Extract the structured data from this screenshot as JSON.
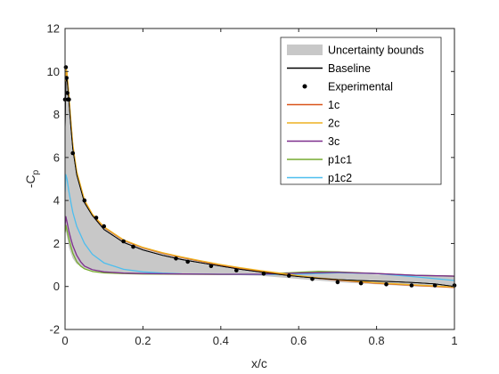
{
  "chart_data": {
    "type": "line",
    "xlabel": "x/c",
    "ylabel": "-C",
    "ylabel_sub": "p",
    "xlim": [
      0,
      1
    ],
    "ylim": [
      -2,
      12
    ],
    "xticks": [
      "0",
      "0.2",
      "0.4",
      "0.6",
      "0.8",
      "1"
    ],
    "xtick_values": [
      0,
      0.2,
      0.4,
      0.6,
      0.8,
      1
    ],
    "yticks": [
      "-2",
      "0",
      "2",
      "4",
      "6",
      "8",
      "10",
      "12"
    ],
    "ytick_values": [
      -2,
      0,
      2,
      4,
      6,
      8,
      10,
      12
    ],
    "grid": false,
    "legend_position": "top-right",
    "uncertainty": {
      "name": "Uncertainty bounds",
      "color": "#c8c8c8",
      "upper": {
        "x": [
          0,
          0.002,
          0.005,
          0.01,
          0.02,
          0.03,
          0.05,
          0.07,
          0.1,
          0.15,
          0.2,
          0.25,
          0.3,
          0.4,
          0.5,
          0.6,
          0.7,
          0.8,
          0.9,
          1.0
        ],
        "y": [
          9.0,
          10.1,
          9.6,
          8.3,
          6.4,
          5.2,
          3.95,
          3.3,
          2.75,
          2.15,
          1.8,
          1.55,
          1.35,
          1.0,
          0.75,
          0.55,
          0.62,
          0.55,
          0.5,
          0.5
        ]
      },
      "lower": {
        "x": [
          0,
          0.002,
          0.005,
          0.01,
          0.02,
          0.03,
          0.05,
          0.07,
          0.1,
          0.15,
          0.2,
          0.25,
          0.3,
          0.4,
          0.5,
          0.6,
          0.7,
          0.8,
          0.9,
          1.0
        ],
        "y": [
          2.9,
          2.6,
          2.3,
          1.8,
          1.3,
          1.05,
          0.85,
          0.75,
          0.68,
          0.62,
          0.6,
          0.58,
          0.57,
          0.55,
          0.5,
          0.35,
          0.2,
          0.1,
          0.0,
          -0.05
        ]
      }
    },
    "series": [
      {
        "name": "Baseline",
        "color": "#000000",
        "width": 0.9,
        "x": [
          0,
          0.002,
          0.005,
          0.01,
          0.015,
          0.02,
          0.03,
          0.05,
          0.07,
          0.1,
          0.15,
          0.2,
          0.25,
          0.3,
          0.35,
          0.4,
          0.45,
          0.5,
          0.55,
          0.6,
          0.65,
          0.7,
          0.75,
          0.8,
          0.85,
          0.9,
          0.95,
          1.0
        ],
        "y": [
          7.3,
          9.5,
          9.7,
          8.6,
          7.4,
          6.4,
          5.2,
          3.9,
          3.3,
          2.65,
          2.05,
          1.7,
          1.45,
          1.25,
          1.1,
          0.95,
          0.8,
          0.68,
          0.56,
          0.46,
          0.38,
          0.32,
          0.28,
          0.25,
          0.22,
          0.18,
          0.12,
          0.0
        ]
      },
      {
        "name": "1c",
        "color": "#d95319",
        "width": 1.3,
        "x": [
          0,
          0.002,
          0.005,
          0.01,
          0.015,
          0.02,
          0.03,
          0.05,
          0.07,
          0.1,
          0.15,
          0.2,
          0.25,
          0.3,
          0.35,
          0.4,
          0.45,
          0.5,
          0.55,
          0.6,
          0.65,
          0.7,
          0.75,
          0.8,
          0.85,
          0.9,
          0.95,
          1.0
        ],
        "y": [
          8.6,
          10.15,
          9.9,
          8.8,
          7.6,
          6.55,
          5.3,
          4.0,
          3.35,
          2.75,
          2.15,
          1.8,
          1.55,
          1.35,
          1.17,
          1.0,
          0.85,
          0.72,
          0.6,
          0.48,
          0.38,
          0.3,
          0.22,
          0.15,
          0.1,
          0.05,
          0.0,
          -0.05
        ]
      },
      {
        "name": "2c",
        "color": "#edb120",
        "width": 1.3,
        "x": [
          0,
          0.002,
          0.005,
          0.01,
          0.015,
          0.02,
          0.03,
          0.05,
          0.07,
          0.1,
          0.15,
          0.2,
          0.25,
          0.3,
          0.35,
          0.4,
          0.45,
          0.5,
          0.55,
          0.6,
          0.65,
          0.7,
          0.75,
          0.8,
          0.85,
          0.9,
          0.95,
          1.0
        ],
        "y": [
          8.7,
          10.2,
          9.95,
          8.85,
          7.65,
          6.6,
          5.35,
          4.02,
          3.37,
          2.77,
          2.17,
          1.82,
          1.57,
          1.37,
          1.19,
          1.02,
          0.87,
          0.74,
          0.62,
          0.5,
          0.4,
          0.32,
          0.24,
          0.17,
          0.12,
          0.07,
          0.02,
          -0.03
        ]
      },
      {
        "name": "3c",
        "color": "#7e2f8e",
        "width": 1.3,
        "x": [
          0,
          0.002,
          0.005,
          0.01,
          0.015,
          0.02,
          0.03,
          0.04,
          0.05,
          0.07,
          0.1,
          0.15,
          0.2,
          0.3,
          0.4,
          0.5,
          0.6,
          0.7,
          0.8,
          0.9,
          1.0
        ],
        "y": [
          2.8,
          3.25,
          3.0,
          2.55,
          2.2,
          1.9,
          1.45,
          1.15,
          0.95,
          0.78,
          0.68,
          0.62,
          0.6,
          0.58,
          0.57,
          0.57,
          0.62,
          0.66,
          0.6,
          0.52,
          0.48
        ]
      },
      {
        "name": "p1c1",
        "color": "#77ac30",
        "width": 1.3,
        "x": [
          0,
          0.002,
          0.005,
          0.01,
          0.015,
          0.02,
          0.03,
          0.04,
          0.05,
          0.07,
          0.1,
          0.15,
          0.2,
          0.3,
          0.4,
          0.5,
          0.6,
          0.65,
          0.7,
          0.8,
          0.9,
          1.0
        ],
        "y": [
          2.5,
          2.85,
          2.6,
          2.2,
          1.85,
          1.55,
          1.15,
          0.95,
          0.82,
          0.7,
          0.63,
          0.6,
          0.58,
          0.57,
          0.56,
          0.57,
          0.66,
          0.7,
          0.68,
          0.6,
          0.52,
          0.48
        ]
      },
      {
        "name": "p1c2",
        "color": "#4dbeee",
        "width": 1.3,
        "x": [
          0,
          0.002,
          0.005,
          0.01,
          0.015,
          0.02,
          0.03,
          0.05,
          0.07,
          0.1,
          0.15,
          0.2,
          0.25,
          0.3,
          0.4,
          0.5,
          0.6,
          0.7,
          0.8,
          0.9,
          1.0
        ],
        "y": [
          4.4,
          5.2,
          5.0,
          4.4,
          3.9,
          3.45,
          2.8,
          2.0,
          1.5,
          1.1,
          0.8,
          0.68,
          0.62,
          0.59,
          0.57,
          0.56,
          0.57,
          0.64,
          0.6,
          0.45,
          0.28
        ]
      }
    ],
    "experimental": {
      "name": "Experimental",
      "color": "#000000",
      "x": [
        0.0,
        0.002,
        0.004,
        0.006,
        0.008,
        0.01,
        0.02,
        0.05,
        0.08,
        0.1,
        0.15,
        0.175,
        0.285,
        0.315,
        0.375,
        0.44,
        0.51,
        0.575,
        0.635,
        0.7,
        0.76,
        0.825,
        0.89,
        0.95,
        1.0
      ],
      "y": [
        8.7,
        10.2,
        9.7,
        9.0,
        8.7,
        8.7,
        6.2,
        4.0,
        3.2,
        2.8,
        2.1,
        1.85,
        1.3,
        1.15,
        0.95,
        0.75,
        0.6,
        0.5,
        0.35,
        0.2,
        0.15,
        0.1,
        0.05,
        0.05,
        0.05
      ]
    }
  }
}
